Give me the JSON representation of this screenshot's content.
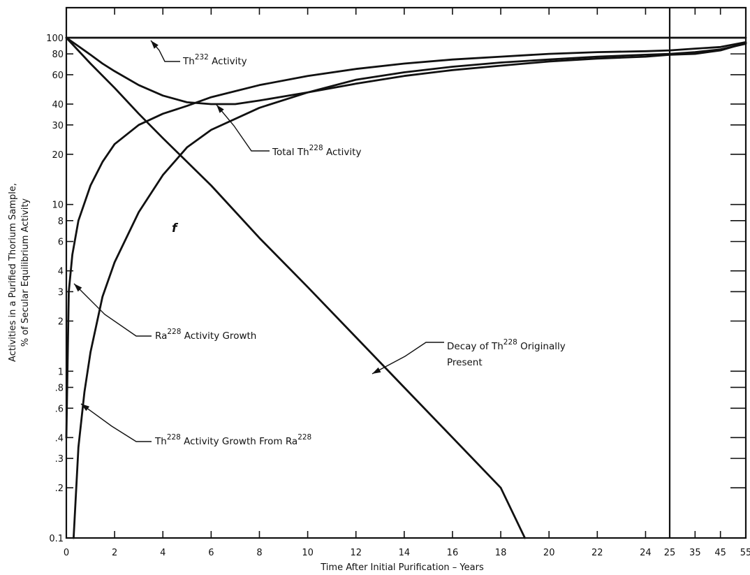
{
  "chart_data": {
    "type": "line",
    "title": "",
    "xlabel": "Time After Initial Purification – Years",
    "ylabel_line1": "Activities in a Purified Thorium Sample,",
    "ylabel_line2": "% of Secular Equilibrium Activity",
    "yscale": "log",
    "ylim": [
      0.1,
      100
    ],
    "xlim": [
      0,
      55
    ],
    "x_axis_break_at": 25,
    "x_ticks": [
      "0",
      "2",
      "4",
      "6",
      "8",
      "10",
      "12",
      "14",
      "16",
      "18",
      "20",
      "22",
      "24",
      "25",
      "35",
      "45",
      "55"
    ],
    "y_ticks": [
      "0.1",
      ".2",
      ".3",
      ".4",
      ".6",
      ".8",
      "1",
      "2",
      "3",
      "4",
      "6",
      "8",
      "10",
      "20",
      "30",
      "40",
      "60",
      "80",
      "100"
    ],
    "stray_mark": "f",
    "series": [
      {
        "name_base": "Th",
        "name_sup": "232",
        "name_rest": " Activity",
        "x": [
          0,
          25,
          55
        ],
        "values": [
          100,
          100,
          100
        ]
      },
      {
        "name_base": "Total Th",
        "name_sup": "228",
        "name_rest": " Activity",
        "x": [
          0,
          0.5,
          1,
          1.5,
          2,
          3,
          4,
          5,
          6,
          7,
          8,
          10,
          12,
          14,
          16,
          18,
          20,
          22,
          24,
          25,
          35,
          45,
          55
        ],
        "values": [
          100,
          89,
          79,
          70,
          63,
          52,
          45,
          41,
          40,
          40,
          42,
          47,
          53,
          59,
          64,
          68,
          72,
          75,
          77,
          79,
          80,
          84,
          93
        ]
      },
      {
        "name_base": "Ra",
        "name_sup": "228",
        "name_rest": " Activity Growth",
        "x": [
          0,
          0.1,
          0.25,
          0.5,
          1,
          1.5,
          2,
          3,
          4,
          5,
          6,
          8,
          10,
          12,
          14,
          16,
          18,
          20,
          22,
          24,
          25,
          35,
          45,
          55
        ],
        "values": [
          0.4,
          3,
          5,
          8,
          13,
          18,
          23,
          30,
          35,
          39,
          44,
          52,
          59,
          65,
          70,
          74,
          77,
          80,
          82,
          83,
          84,
          86,
          88,
          94
        ]
      },
      {
        "name_base": "Th",
        "name_sup": "228",
        "name_rest": " Activity Growth From Ra",
        "name_sup2": "228",
        "x": [
          0.3,
          0.5,
          0.75,
          1,
          1.5,
          2,
          3,
          4,
          5,
          6,
          8,
          10,
          12,
          14,
          16,
          18,
          20,
          22,
          24,
          25,
          35,
          45,
          55
        ],
        "values": [
          0.1,
          0.35,
          0.75,
          1.3,
          2.8,
          4.5,
          9,
          15,
          22,
          28,
          38,
          47,
          56,
          62,
          67,
          71,
          74,
          77,
          79,
          80,
          82,
          85,
          92
        ]
      },
      {
        "name_base": "Decay of Th",
        "name_sup": "228",
        "name_rest": " Originally",
        "name_line2": "Present",
        "x": [
          0,
          1,
          2,
          3,
          4,
          6,
          8,
          10,
          12,
          14,
          16,
          18,
          19
        ],
        "values": [
          100,
          70,
          50,
          35,
          25,
          13,
          6.3,
          3.2,
          1.6,
          0.8,
          0.4,
          0.2,
          0.1
        ]
      }
    ],
    "annotations": {
      "th232": {
        "base": "Th",
        "sup": "232",
        "rest": " Activity"
      },
      "total": {
        "base": "Total Th",
        "sup": "228",
        "rest": " Activity"
      },
      "ra": {
        "base": "Ra",
        "sup": "228",
        "rest": " Activity Growth"
      },
      "thgrowth": {
        "base": "Th",
        "sup": "228",
        "rest": " Activity Growth From Ra",
        "sup2": "228"
      },
      "decay": {
        "base": "Decay of Th",
        "sup": "228",
        "rest": " Originally",
        "line2": "Present"
      }
    }
  }
}
